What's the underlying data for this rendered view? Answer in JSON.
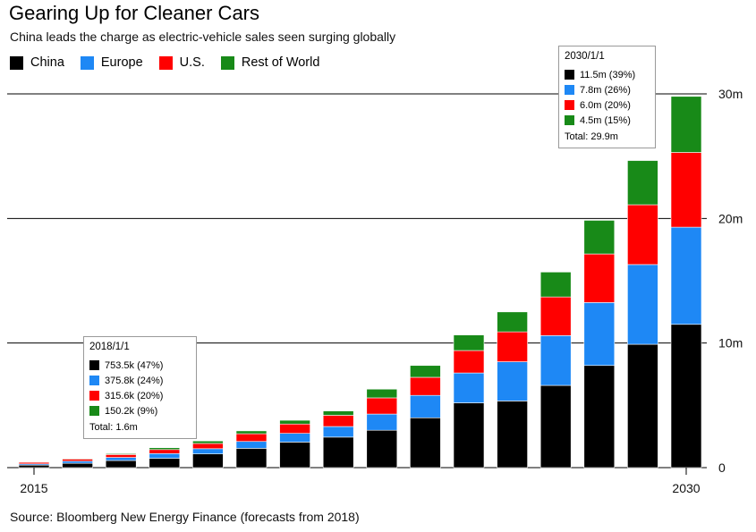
{
  "header": {
    "title": "Gearing Up for Cleaner Cars",
    "subtitle": "China leads the charge as electric-vehicle sales seen surging globally"
  },
  "footer": {
    "source": "Source: Bloomberg New Energy Finance (forecasts from 2018)"
  },
  "colors": {
    "China": "#000000",
    "Europe": "#1e88f5",
    "U.S.": "#ff0000",
    "Rest of World": "#188a18"
  },
  "chart_data": {
    "type": "bar",
    "stacked": true,
    "categories": [
      "2015",
      "2016",
      "2017",
      "2018",
      "2019",
      "2020",
      "2021",
      "2022",
      "2023",
      "2024",
      "2025",
      "2026",
      "2027",
      "2028",
      "2029",
      "2030"
    ],
    "x_tick_labels": [
      "2015",
      "2030"
    ],
    "series": [
      {
        "name": "China",
        "values": [
          0.2,
          0.35,
          0.57,
          0.75,
          1.1,
          1.55,
          2.05,
          2.45,
          3.0,
          4.0,
          5.2,
          5.35,
          6.6,
          8.2,
          9.9,
          11.5
        ]
      },
      {
        "name": "Europe",
        "values": [
          0.1,
          0.17,
          0.25,
          0.38,
          0.42,
          0.55,
          0.7,
          0.85,
          1.3,
          1.8,
          2.4,
          3.15,
          4.0,
          5.05,
          6.4,
          7.8
        ]
      },
      {
        "name": "U.S.",
        "values": [
          0.13,
          0.17,
          0.23,
          0.32,
          0.42,
          0.62,
          0.75,
          0.9,
          1.3,
          1.45,
          1.8,
          2.4,
          3.1,
          3.9,
          4.8,
          6.0
        ]
      },
      {
        "name": "Rest of World",
        "values": [
          0.03,
          0.05,
          0.07,
          0.15,
          0.2,
          0.23,
          0.3,
          0.35,
          0.7,
          0.95,
          1.25,
          1.6,
          2.0,
          2.7,
          3.55,
          4.5
        ]
      }
    ],
    "y_ticks": [
      0,
      10,
      20,
      30
    ],
    "y_tick_labels": [
      "0",
      "10m",
      "20m",
      "30m"
    ],
    "ylim": [
      0,
      30
    ],
    "ylabel": "",
    "xlabel": "",
    "legend_position": "top-left",
    "grid": true,
    "tooltips": [
      {
        "date": "2018/1/1",
        "rows": [
          {
            "series": "China",
            "text": "753.5k  (47%)"
          },
          {
            "series": "Europe",
            "text": "375.8k  (24%)"
          },
          {
            "series": "U.S.",
            "text": "315.6k  (20%)"
          },
          {
            "series": "Rest of World",
            "text": "150.2k  (9%)"
          }
        ],
        "total": "Total: 1.6m"
      },
      {
        "date": "2030/1/1",
        "rows": [
          {
            "series": "China",
            "text": "11.5m  (39%)"
          },
          {
            "series": "Europe",
            "text": "7.8m  (26%)"
          },
          {
            "series": "U.S.",
            "text": "6.0m  (20%)"
          },
          {
            "series": "Rest of World",
            "text": "4.5m  (15%)"
          }
        ],
        "total": "Total: 29.9m"
      }
    ]
  }
}
